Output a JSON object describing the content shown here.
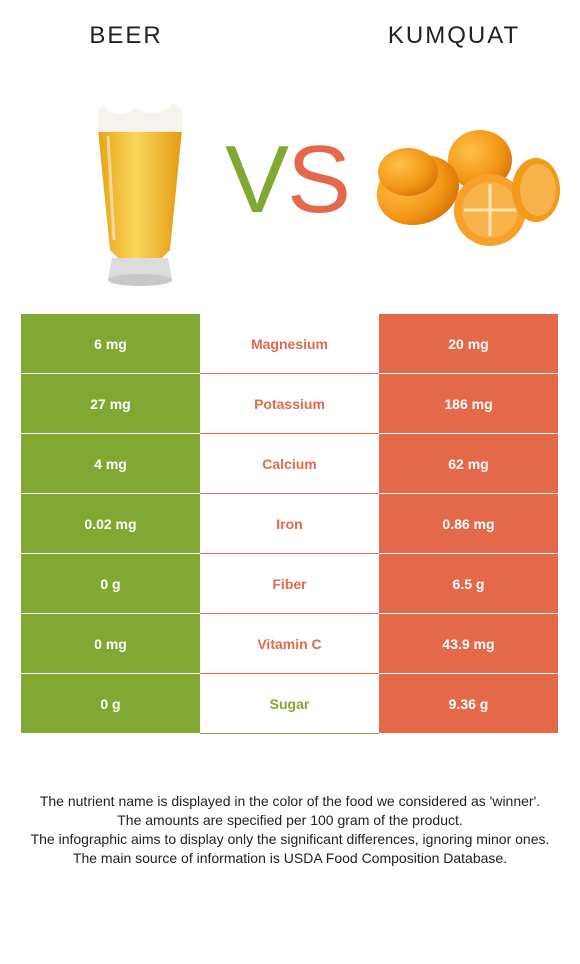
{
  "header": {
    "left_title": "BEER",
    "right_title": "KUMQUAT",
    "vs_v": "V",
    "vs_s": "S"
  },
  "colors": {
    "beer_green": "#80a832",
    "kumquat_orange": "#e4694b"
  },
  "rows": [
    {
      "nutrient": "Magnesium",
      "left": "6 mg",
      "right": "20 mg",
      "winner": "right"
    },
    {
      "nutrient": "Potassium",
      "left": "27 mg",
      "right": "186 mg",
      "winner": "right"
    },
    {
      "nutrient": "Calcium",
      "left": "4 mg",
      "right": "62 mg",
      "winner": "right"
    },
    {
      "nutrient": "Iron",
      "left": "0.02 mg",
      "right": "0.86 mg",
      "winner": "right"
    },
    {
      "nutrient": "Fiber",
      "left": "0 g",
      "right": "6.5 g",
      "winner": "right"
    },
    {
      "nutrient": "Vitamin C",
      "left": "0 mg",
      "right": "43.9 mg",
      "winner": "right"
    },
    {
      "nutrient": "Sugar",
      "left": "0 g",
      "right": "9.36 g",
      "winner": "left"
    }
  ],
  "notes": [
    "The nutrient name is displayed in the color of the food we considered as 'winner'.",
    "The amounts are specified per 100 gram of the product.",
    "The infographic aims to display only the significant differences, ignoring minor ones.",
    "The main source of information is USDA Food Composition Database."
  ]
}
